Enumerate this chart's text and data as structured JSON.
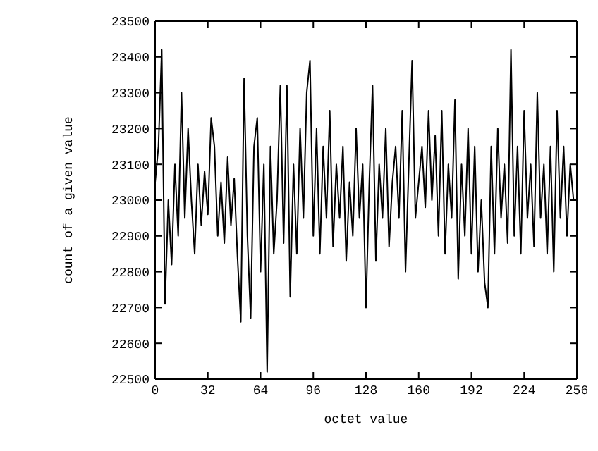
{
  "chart_data": {
    "type": "line",
    "xlabel": "octet value",
    "ylabel": "count of a given value",
    "x": [
      0,
      2,
      4,
      6,
      8,
      10,
      12,
      14,
      16,
      18,
      20,
      22,
      24,
      26,
      28,
      30,
      32,
      34,
      36,
      38,
      40,
      42,
      44,
      46,
      48,
      50,
      52,
      54,
      56,
      58,
      60,
      62,
      64,
      66,
      68,
      70,
      72,
      74,
      76,
      78,
      80,
      82,
      84,
      86,
      88,
      90,
      92,
      94,
      96,
      98,
      100,
      102,
      104,
      106,
      108,
      110,
      112,
      114,
      116,
      118,
      120,
      122,
      124,
      126,
      128,
      130,
      132,
      134,
      136,
      138,
      140,
      142,
      144,
      146,
      148,
      150,
      152,
      154,
      156,
      158,
      160,
      162,
      164,
      166,
      168,
      170,
      172,
      174,
      176,
      178,
      180,
      182,
      184,
      186,
      188,
      190,
      192,
      194,
      196,
      198,
      200,
      202,
      204,
      206,
      208,
      210,
      212,
      214,
      216,
      218,
      220,
      222,
      224,
      226,
      228,
      230,
      232,
      234,
      236,
      238,
      240,
      242,
      244,
      246,
      248,
      250,
      252,
      254
    ],
    "series": [
      {
        "color": "#000000",
        "values": [
          23050,
          23150,
          23420,
          22710,
          23000,
          22820,
          23100,
          22900,
          23300,
          22950,
          23200,
          23000,
          22850,
          23100,
          22930,
          23080,
          22960,
          23230,
          23150,
          22900,
          23050,
          22880,
          23120,
          22930,
          23060,
          22840,
          22660,
          23340,
          22900,
          22670,
          23150,
          23230,
          22800,
          23100,
          22520,
          23150,
          22850,
          23000,
          23320,
          22880,
          23320,
          22730,
          23100,
          22850,
          23200,
          22950,
          23300,
          23390,
          22900,
          23200,
          22850,
          23150,
          22950,
          23250,
          22870,
          23100,
          22950,
          23150,
          22830,
          23050,
          22900,
          23200,
          22950,
          23100,
          22700,
          23050,
          23320,
          22830,
          23100,
          22950,
          23200,
          22870,
          23050,
          23150,
          22950,
          23250,
          22800,
          23100,
          23390,
          22950,
          23050,
          23150,
          22980,
          23250,
          23000,
          23180,
          22900,
          23250,
          22850,
          23100,
          22950,
          23280,
          22780,
          23100,
          22900,
          23200,
          22850,
          23150,
          22800,
          23000,
          22770,
          22700,
          23150,
          22850,
          23200,
          22950,
          23100,
          22880,
          23420,
          22900,
          23150,
          22850,
          23250,
          22950,
          23100,
          22870,
          23300,
          22950,
          23100,
          22850,
          23150,
          22800,
          23250,
          22950,
          23150,
          22900,
          23100,
          23000
        ]
      }
    ],
    "xlim": [
      0,
      256
    ],
    "xticks": [
      0,
      32,
      64,
      96,
      128,
      160,
      192,
      224,
      256
    ],
    "ylim": [
      22500,
      23500
    ],
    "yticks": [
      22500,
      22600,
      22700,
      22800,
      22900,
      23000,
      23100,
      23200,
      23300,
      23400,
      23500
    ],
    "grid": false,
    "legend": false,
    "marker": "none",
    "line_style": "solid"
  }
}
